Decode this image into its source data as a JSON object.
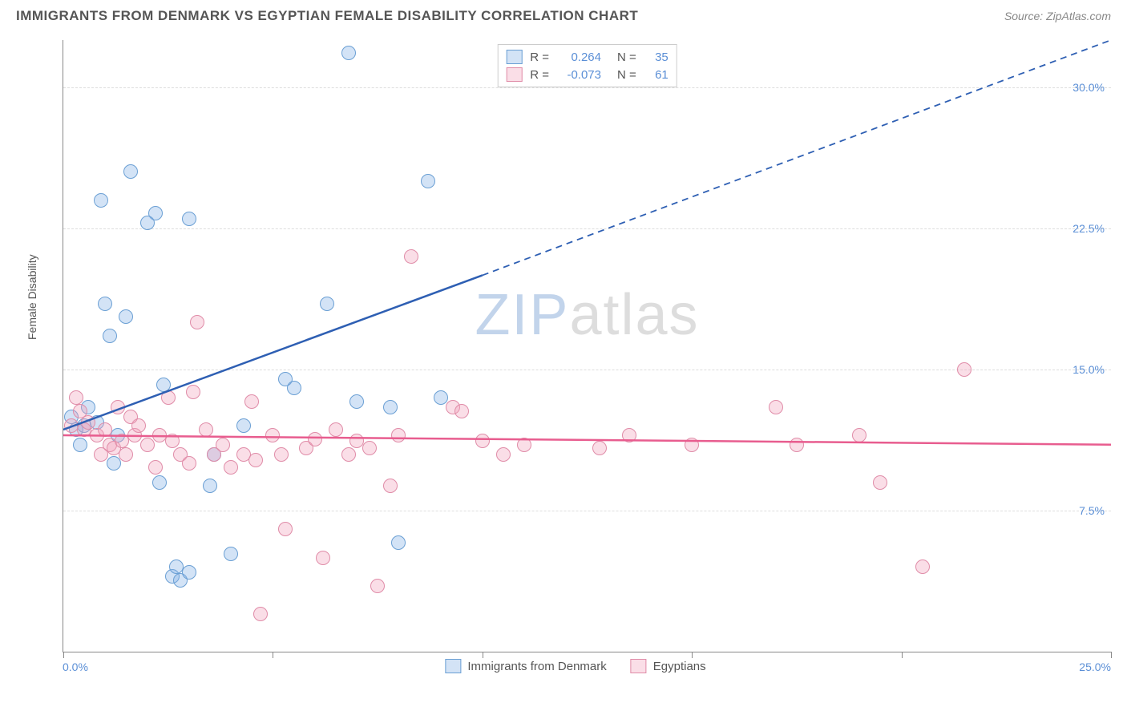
{
  "title": "IMMIGRANTS FROM DENMARK VS EGYPTIAN FEMALE DISABILITY CORRELATION CHART",
  "source": "Source: ZipAtlas.com",
  "watermark_part1": "ZIP",
  "watermark_part2": "atlas",
  "y_axis_title": "Female Disability",
  "chart": {
    "type": "scatter",
    "xlim": [
      0,
      25
    ],
    "ylim": [
      0,
      32.5
    ],
    "x_ticks": [
      0,
      5,
      10,
      15,
      20,
      25
    ],
    "y_ticks": [
      7.5,
      15.0,
      22.5,
      30.0
    ],
    "y_tick_labels": [
      "7.5%",
      "15.0%",
      "22.5%",
      "30.0%"
    ],
    "x_min_label": "0.0%",
    "x_max_label": "25.0%",
    "background_color": "#ffffff",
    "grid_color": "#dddddd",
    "axis_color": "#888888",
    "label_color": "#5b8fd6",
    "point_radius": 9,
    "point_stroke_width": 1.2
  },
  "series": [
    {
      "name": "Immigrants from Denmark",
      "fill_color": "rgba(130,175,230,0.35)",
      "stroke_color": "#6a9fd4",
      "line_color": "#2e5fb3",
      "r_value": "0.264",
      "n_value": "35",
      "trend": {
        "x1": 0,
        "y1": 11.8,
        "x2": 10,
        "y2": 20.0,
        "dash_x2": 25,
        "dash_y2": 32.5
      },
      "points": [
        [
          0.2,
          12.5
        ],
        [
          0.3,
          11.8
        ],
        [
          0.5,
          12.0
        ],
        [
          0.6,
          13.0
        ],
        [
          0.9,
          24.0
        ],
        [
          1.0,
          18.5
        ],
        [
          1.1,
          16.8
        ],
        [
          1.2,
          10.0
        ],
        [
          1.5,
          17.8
        ],
        [
          1.6,
          25.5
        ],
        [
          2.2,
          23.3
        ],
        [
          2.3,
          9.0
        ],
        [
          2.4,
          14.2
        ],
        [
          2.6,
          4.0
        ],
        [
          2.7,
          4.5
        ],
        [
          2.8,
          3.8
        ],
        [
          3.0,
          23.0
        ],
        [
          3.0,
          4.2
        ],
        [
          3.5,
          8.8
        ],
        [
          3.6,
          10.5
        ],
        [
          4.0,
          5.2
        ],
        [
          4.3,
          12.0
        ],
        [
          5.3,
          14.5
        ],
        [
          5.5,
          14.0
        ],
        [
          6.3,
          18.5
        ],
        [
          6.8,
          31.8
        ],
        [
          7.0,
          13.3
        ],
        [
          7.8,
          13.0
        ],
        [
          8.0,
          5.8
        ],
        [
          8.7,
          25.0
        ],
        [
          9.0,
          13.5
        ],
        [
          0.4,
          11.0
        ],
        [
          0.8,
          12.2
        ],
        [
          1.3,
          11.5
        ],
        [
          2.0,
          22.8
        ]
      ]
    },
    {
      "name": "Egyptians",
      "fill_color": "rgba(240,160,185,0.35)",
      "stroke_color": "#e08ca8",
      "line_color": "#e85d8f",
      "r_value": "-0.073",
      "n_value": "61",
      "trend": {
        "x1": 0,
        "y1": 11.5,
        "x2": 25,
        "y2": 11.0
      },
      "points": [
        [
          0.2,
          12.0
        ],
        [
          0.3,
          13.5
        ],
        [
          0.5,
          11.8
        ],
        [
          0.6,
          12.2
        ],
        [
          0.8,
          11.5
        ],
        [
          0.9,
          10.5
        ],
        [
          1.0,
          11.8
        ],
        [
          1.1,
          11.0
        ],
        [
          1.2,
          10.8
        ],
        [
          1.3,
          13.0
        ],
        [
          1.4,
          11.2
        ],
        [
          1.5,
          10.5
        ],
        [
          1.7,
          11.5
        ],
        [
          1.8,
          12.0
        ],
        [
          2.0,
          11.0
        ],
        [
          2.2,
          9.8
        ],
        [
          2.3,
          11.5
        ],
        [
          2.5,
          13.5
        ],
        [
          2.6,
          11.2
        ],
        [
          2.8,
          10.5
        ],
        [
          3.0,
          10.0
        ],
        [
          3.1,
          13.8
        ],
        [
          3.2,
          17.5
        ],
        [
          3.4,
          11.8
        ],
        [
          3.6,
          10.5
        ],
        [
          3.8,
          11.0
        ],
        [
          4.0,
          9.8
        ],
        [
          4.3,
          10.5
        ],
        [
          4.5,
          13.3
        ],
        [
          4.6,
          10.2
        ],
        [
          4.7,
          2.0
        ],
        [
          5.0,
          11.5
        ],
        [
          5.2,
          10.5
        ],
        [
          5.3,
          6.5
        ],
        [
          5.8,
          10.8
        ],
        [
          6.0,
          11.3
        ],
        [
          6.2,
          5.0
        ],
        [
          6.5,
          11.8
        ],
        [
          6.8,
          10.5
        ],
        [
          7.0,
          11.2
        ],
        [
          7.3,
          10.8
        ],
        [
          7.5,
          3.5
        ],
        [
          7.8,
          8.8
        ],
        [
          8.0,
          11.5
        ],
        [
          8.3,
          21.0
        ],
        [
          9.3,
          13.0
        ],
        [
          9.5,
          12.8
        ],
        [
          10.0,
          11.2
        ],
        [
          10.5,
          10.5
        ],
        [
          11.0,
          11.0
        ],
        [
          12.8,
          10.8
        ],
        [
          13.5,
          11.5
        ],
        [
          15.0,
          11.0
        ],
        [
          17.0,
          13.0
        ],
        [
          17.5,
          11.0
        ],
        [
          19.0,
          11.5
        ],
        [
          19.5,
          9.0
        ],
        [
          20.5,
          4.5
        ],
        [
          21.5,
          15.0
        ],
        [
          0.4,
          12.8
        ],
        [
          1.6,
          12.5
        ]
      ]
    }
  ],
  "legend_stats": {
    "r_label": "R =",
    "n_label": "N ="
  }
}
